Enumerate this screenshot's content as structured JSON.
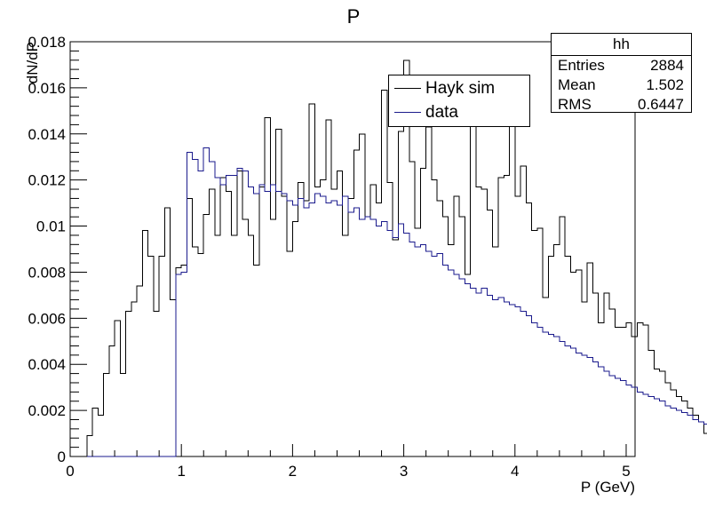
{
  "chart_data": {
    "type": "histogram",
    "title": "P",
    "xlabel": "P (GeV)",
    "ylabel": "dN/dP",
    "xlim": [
      0,
      5.08
    ],
    "ylim": [
      0,
      0.018
    ],
    "x_ticks": [
      "0",
      "1",
      "2",
      "3",
      "4",
      "5"
    ],
    "y_ticks": [
      "0",
      "0.002",
      "0.004",
      "0.006",
      "0.008",
      "0.01",
      "0.012",
      "0.014",
      "0.016",
      "0.018"
    ],
    "bin_width": 0.05,
    "x_start": 0,
    "grid": false,
    "legend_position": "top-right",
    "series": [
      {
        "name": "Hayk sim",
        "color": "#000000",
        "values": [
          0,
          0,
          0,
          0.0009,
          0.0021,
          0.0018,
          0.0036,
          0.0048,
          0.0059,
          0.0036,
          0.0063,
          0.0067,
          0.0074,
          0.0098,
          0.0087,
          0.0063,
          0.0087,
          0.0108,
          0.0068,
          0.0082,
          0.0083,
          0.0112,
          0.0091,
          0.0088,
          0.0105,
          0.0116,
          0.0096,
          0.0121,
          0.0115,
          0.0096,
          0.0124,
          0.0103,
          0.0096,
          0.0083,
          0.0117,
          0.0147,
          0.0103,
          0.0142,
          0.0113,
          0.0089,
          0.0102,
          0.0119,
          0.0111,
          0.0153,
          0.0117,
          0.012,
          0.0146,
          0.0116,
          0.0124,
          0.0096,
          0.0112,
          0.0133,
          0.014,
          0.0104,
          0.0118,
          0.011,
          0.0159,
          0.0119,
          0.0094,
          0.0141,
          0.0172,
          0.0128,
          0.0099,
          0.0125,
          0.0143,
          0.012,
          0.0111,
          0.0104,
          0.0092,
          0.0113,
          0.0104,
          0.0079,
          0.0155,
          0.0117,
          0.0116,
          0.0107,
          0.0091,
          0.0121,
          0.0122,
          0.0146,
          0.0113,
          0.0126,
          0.011,
          0.0098,
          0.0099,
          0.0069,
          0.0087,
          0.0092,
          0.0104,
          0.0087,
          0.008,
          0.0081,
          0.0067,
          0.0084,
          0.0071,
          0.0058,
          0.0071,
          0.0064,
          0.0056,
          0.0056,
          0.0058,
          0.0052,
          0.0058,
          0.0057,
          0.0046,
          0.0038,
          0.0037,
          0.0032,
          0.0029,
          0.0026,
          0.0024,
          0.0021,
          0.0018,
          0.0015,
          0.001,
          0.0017,
          0.0009,
          0.0005,
          0.0003,
          0.0003,
          0.0002,
          0.0004,
          0.0008,
          0.0001,
          0.0001,
          0.0003,
          0.0008,
          0.0003,
          0.0002,
          0.0004,
          0.0001,
          0.0002,
          0.0004,
          0,
          0.0002,
          0.0003,
          0,
          0,
          0,
          0,
          0,
          0,
          0,
          0,
          0,
          0,
          0,
          0,
          0,
          0,
          0,
          0,
          0
        ]
      },
      {
        "name": "data",
        "color": "#1a1a8c",
        "values": [
          0,
          0,
          0,
          0,
          0,
          0,
          0,
          0,
          0,
          0,
          0,
          0,
          0,
          0,
          0,
          0,
          0,
          0,
          0,
          0.0079,
          0.008,
          0.0132,
          0.0129,
          0.0124,
          0.0134,
          0.0128,
          0.0121,
          0.0118,
          0.0122,
          0.0122,
          0.0125,
          0.0124,
          0.0117,
          0.0114,
          0.0118,
          0.0115,
          0.0118,
          0.0115,
          0.0114,
          0.0111,
          0.0109,
          0.0112,
          0.0108,
          0.011,
          0.0114,
          0.0113,
          0.011,
          0.0111,
          0.0109,
          0.0113,
          0.0106,
          0.0108,
          0.0103,
          0.0104,
          0.0103,
          0.01,
          0.0102,
          0.0098,
          0.0095,
          0.0101,
          0.0097,
          0.0093,
          0.0091,
          0.0092,
          0.0089,
          0.0087,
          0.0088,
          0.0083,
          0.0081,
          0.0079,
          0.0077,
          0.0075,
          0.0073,
          0.0071,
          0.0073,
          0.007,
          0.0068,
          0.0069,
          0.0067,
          0.0066,
          0.0065,
          0.0063,
          0.0061,
          0.0058,
          0.0056,
          0.0054,
          0.0053,
          0.0052,
          0.005,
          0.0048,
          0.0047,
          0.0045,
          0.0044,
          0.0043,
          0.0041,
          0.0039,
          0.0037,
          0.0035,
          0.0034,
          0.0033,
          0.0031,
          0.003,
          0.0028,
          0.0027,
          0.0026,
          0.0025,
          0.0024,
          0.0022,
          0.0021,
          0.002,
          0.0019,
          0.0018,
          0.0016,
          0.0015,
          0.0014,
          0.0013,
          0.0012,
          0.0011,
          0.001,
          0.0009,
          0.0008,
          0.0007,
          0.0006,
          0.0006,
          0.0005,
          0.0004,
          0.0003,
          0.0003,
          0.0002,
          0.0001,
          0.0001,
          0,
          0,
          0,
          0,
          0,
          0,
          0,
          0,
          0,
          0,
          0,
          0,
          0,
          0,
          0,
          0,
          0,
          0,
          0,
          0,
          0,
          0,
          0
        ]
      }
    ]
  },
  "stats": {
    "name": "hh",
    "entries_label": "Entries",
    "entries_value": "2884",
    "mean_label": "Mean",
    "mean_value": "1.502",
    "rms_label": "RMS",
    "rms_value": "0.6447"
  }
}
